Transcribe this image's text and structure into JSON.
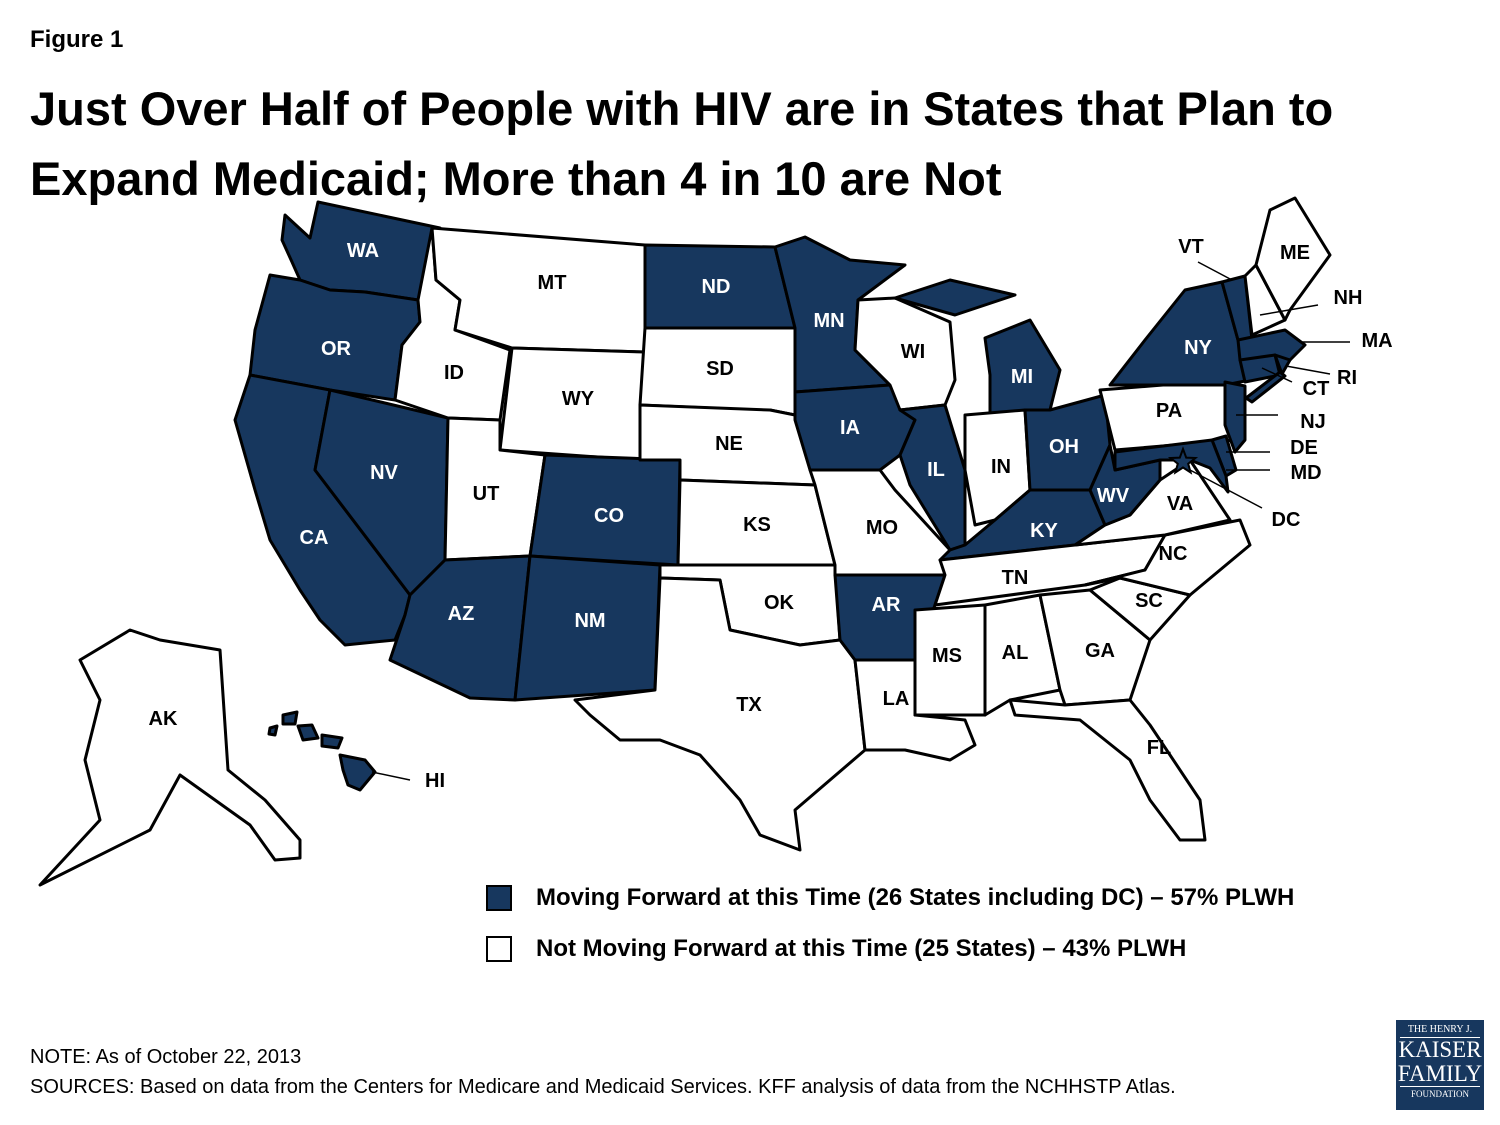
{
  "figure_label": "Figure 1",
  "title": "Just Over Half of People with HIV are in States that Plan to Expand Medicaid; More than 4 in 10 are Not",
  "colors": {
    "moving_forward": "#17375e",
    "not_moving_forward": "#ffffff",
    "border": "#000000"
  },
  "states": [
    {
      "code": "WA",
      "expanding": true
    },
    {
      "code": "OR",
      "expanding": true
    },
    {
      "code": "CA",
      "expanding": true
    },
    {
      "code": "NV",
      "expanding": true
    },
    {
      "code": "ID",
      "expanding": false
    },
    {
      "code": "MT",
      "expanding": false
    },
    {
      "code": "WY",
      "expanding": false
    },
    {
      "code": "UT",
      "expanding": false
    },
    {
      "code": "AZ",
      "expanding": true
    },
    {
      "code": "CO",
      "expanding": true
    },
    {
      "code": "NM",
      "expanding": true
    },
    {
      "code": "ND",
      "expanding": true
    },
    {
      "code": "SD",
      "expanding": false
    },
    {
      "code": "NE",
      "expanding": false
    },
    {
      "code": "KS",
      "expanding": false
    },
    {
      "code": "OK",
      "expanding": false
    },
    {
      "code": "TX",
      "expanding": false
    },
    {
      "code": "MN",
      "expanding": true
    },
    {
      "code": "IA",
      "expanding": true
    },
    {
      "code": "MO",
      "expanding": false
    },
    {
      "code": "AR",
      "expanding": true
    },
    {
      "code": "LA",
      "expanding": false
    },
    {
      "code": "WI",
      "expanding": false
    },
    {
      "code": "IL",
      "expanding": true
    },
    {
      "code": "MI",
      "expanding": true
    },
    {
      "code": "IN",
      "expanding": false
    },
    {
      "code": "OH",
      "expanding": true
    },
    {
      "code": "KY",
      "expanding": true
    },
    {
      "code": "TN",
      "expanding": false
    },
    {
      "code": "MS",
      "expanding": false
    },
    {
      "code": "AL",
      "expanding": false
    },
    {
      "code": "GA",
      "expanding": false
    },
    {
      "code": "FL",
      "expanding": false
    },
    {
      "code": "SC",
      "expanding": false
    },
    {
      "code": "NC",
      "expanding": false
    },
    {
      "code": "VA",
      "expanding": false
    },
    {
      "code": "WV",
      "expanding": true
    },
    {
      "code": "PA",
      "expanding": false
    },
    {
      "code": "NY",
      "expanding": true
    },
    {
      "code": "VT",
      "expanding": true
    },
    {
      "code": "NH",
      "expanding": false
    },
    {
      "code": "ME",
      "expanding": false
    },
    {
      "code": "MA",
      "expanding": true
    },
    {
      "code": "CT",
      "expanding": true
    },
    {
      "code": "RI",
      "expanding": true
    },
    {
      "code": "NJ",
      "expanding": true
    },
    {
      "code": "DE",
      "expanding": true
    },
    {
      "code": "MD",
      "expanding": true
    },
    {
      "code": "DC",
      "expanding": true
    },
    {
      "code": "AK",
      "expanding": false
    },
    {
      "code": "HI",
      "expanding": true
    }
  ],
  "legend": {
    "moving_forward": "Moving Forward at this Time (26 States including DC) – 57% PLWH",
    "not_moving_forward": "Not Moving Forward at this Time (25 States) – 43% PLWH"
  },
  "note": "NOTE: As of October 22, 2013",
  "sources": "SOURCES: Based on data from the Centers for Medicare and Medicaid Services.  KFF analysis of data from the NCHHSTP Atlas.",
  "logo": {
    "line1": "THE HENRY J.",
    "line2": "KAISER",
    "line3": "FAMILY",
    "line4": "FOUNDATION"
  }
}
